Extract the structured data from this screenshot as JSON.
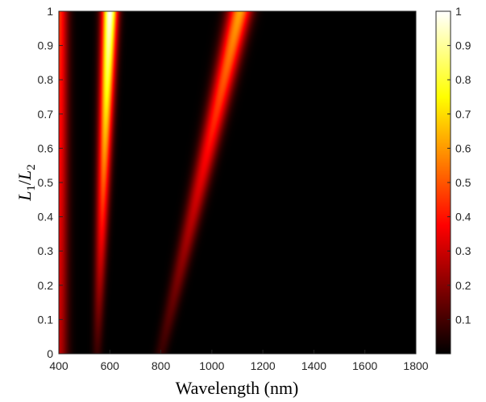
{
  "chart_data": {
    "type": "heatmap",
    "title": "",
    "xlabel": "Wavelength (nm)",
    "ylabel": {
      "var1": "L",
      "sub1": "1",
      "slash": "/",
      "var2": "L",
      "sub2": "2"
    },
    "xlim": [
      400,
      1800
    ],
    "ylim": [
      0,
      1
    ],
    "x_ticks": [
      "400",
      "600",
      "800",
      "1000",
      "1200",
      "1400",
      "1600",
      "1800"
    ],
    "y_ticks": [
      "0",
      "0.1",
      "0.2",
      "0.3",
      "0.4",
      "0.5",
      "0.6",
      "0.7",
      "0.8",
      "0.9",
      "1"
    ],
    "colorbar": {
      "colormap": "hot",
      "range": [
        0,
        1
      ],
      "ticks": [
        "0.1",
        "0.2",
        "0.3",
        "0.4",
        "0.5",
        "0.6",
        "0.7",
        "0.8",
        "0.9",
        "1"
      ]
    },
    "features": [
      {
        "name": "short-wavelength edge",
        "center_at_ratio_0": 400,
        "center_at_ratio_1": 400,
        "width_nm": 35,
        "peak": 0.45
      },
      {
        "name": "narrow resonance",
        "center_at_ratio_0": 550,
        "center_at_ratio_1": 600,
        "width_at_ratio_0": 20,
        "width_at_ratio_1": 30,
        "peak_at_ratio_0": 0.08,
        "peak_at_ratio_1": 1.0
      },
      {
        "name": "broad resonance",
        "center_at_ratio_0": 800,
        "center_at_ratio_1": 1110,
        "width_at_ratio_0": 25,
        "width_at_ratio_1": 45,
        "peak_at_ratio_0": 0.08,
        "peak_at_ratio_1": 0.62
      }
    ]
  }
}
